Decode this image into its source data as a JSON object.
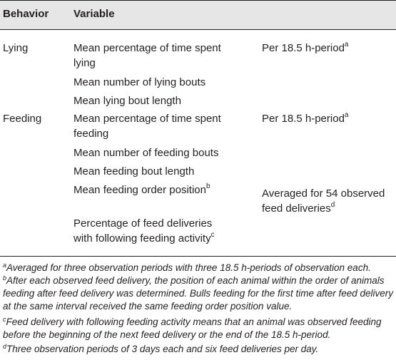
{
  "table": {
    "headers": {
      "behavior": "Behavior",
      "variable": "Variable",
      "note": ""
    },
    "rows": [
      {
        "behavior": "Lying",
        "variable_lines": [
          "Mean percentage of time spent",
          "lying"
        ],
        "variable_sup": "",
        "note_lines": [
          "Per 18.5 h-period"
        ],
        "note_sup": "a"
      },
      {
        "behavior": "",
        "variable_lines": [
          "Mean number of lying bouts"
        ],
        "variable_sup": "",
        "note_lines": [],
        "note_sup": ""
      },
      {
        "behavior": "",
        "variable_lines": [
          "Mean lying bout length"
        ],
        "variable_sup": "",
        "note_lines": [],
        "note_sup": ""
      },
      {
        "behavior": "Feeding",
        "variable_lines": [
          "Mean percentage of time spent",
          "feeding"
        ],
        "variable_sup": "",
        "note_lines": [
          "Per 18.5 h-period"
        ],
        "note_sup": "a"
      },
      {
        "behavior": "",
        "variable_lines": [
          "Mean number of feeding bouts"
        ],
        "variable_sup": "",
        "note_lines": [],
        "note_sup": ""
      },
      {
        "behavior": "",
        "variable_lines": [
          "Mean feeding bout length"
        ],
        "variable_sup": "",
        "note_lines": [],
        "note_sup": ""
      },
      {
        "behavior": "",
        "variable_lines": [
          "Mean feeding order position"
        ],
        "variable_sup": "b",
        "note_lines": [
          "Averaged for 54 observed",
          "feed deliveries"
        ],
        "note_sup": "d"
      },
      {
        "behavior": "",
        "variable_lines": [
          "Percentage of feed deliveries",
          "with following feeding activity"
        ],
        "variable_sup": "c",
        "note_lines": [],
        "note_sup": ""
      }
    ]
  },
  "footnotes": [
    {
      "mark": "a",
      "lines": [
        "Averaged for three observation periods with three 18.5 h-periods of observation each."
      ]
    },
    {
      "mark": "b",
      "lines": [
        "After each observed feed delivery, the position of each animal within the order of animals",
        "feeding after feed delivery was determined. Bulls feeding for the first time after feed delivery",
        "at the same interval received the same feeding order position value."
      ]
    },
    {
      "mark": "c",
      "lines": [
        "Feed delivery with following feeding activity means that an animal was observed feeding",
        "before the beginning of the next feed delivery or the end of the 18.5 h-period."
      ]
    },
    {
      "mark": "d",
      "lines": [
        "Three observation periods of 3 days each and six feed deliveries per day."
      ]
    }
  ]
}
